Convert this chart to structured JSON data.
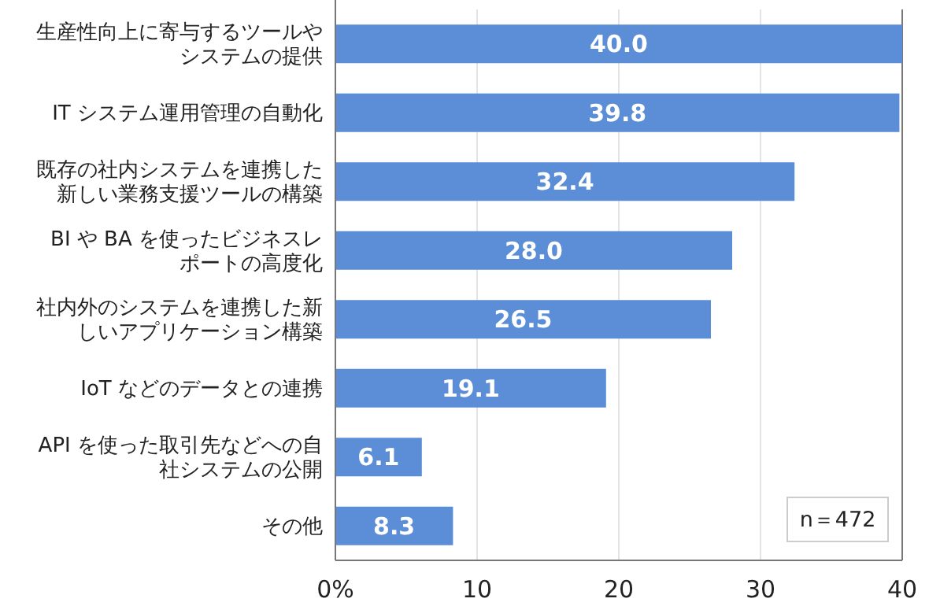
{
  "chart_data": {
    "type": "bar",
    "orientation": "horizontal",
    "categories": [
      "生産性向上に寄与するツールやシステムの提供",
      "IT システム運用管理の自動化",
      "既存の社内システムを連携した新しい業務支援ツールの構築",
      "BI や BA を使ったビジネスレポートの高度化",
      "社内外のシステムを連携した新しいアプリケーション構築",
      "IoT などのデータとの連携",
      "API を使った取引先などへの自社システムの公開",
      "その他"
    ],
    "values": [
      40.0,
      39.8,
      32.4,
      28.0,
      26.5,
      19.1,
      6.1,
      8.3
    ],
    "color": "#5b8ed6",
    "value_labels": [
      "40.0",
      "39.8",
      "32.4",
      "28.0",
      "26.5",
      "19.1",
      "6.1",
      "8.3"
    ],
    "xlim": [
      0,
      40
    ],
    "xticks": [
      {
        "value": 0,
        "label": "0%"
      },
      10,
      20,
      30,
      40
    ],
    "grid": "x",
    "annotations": [
      "n＝472"
    ]
  }
}
